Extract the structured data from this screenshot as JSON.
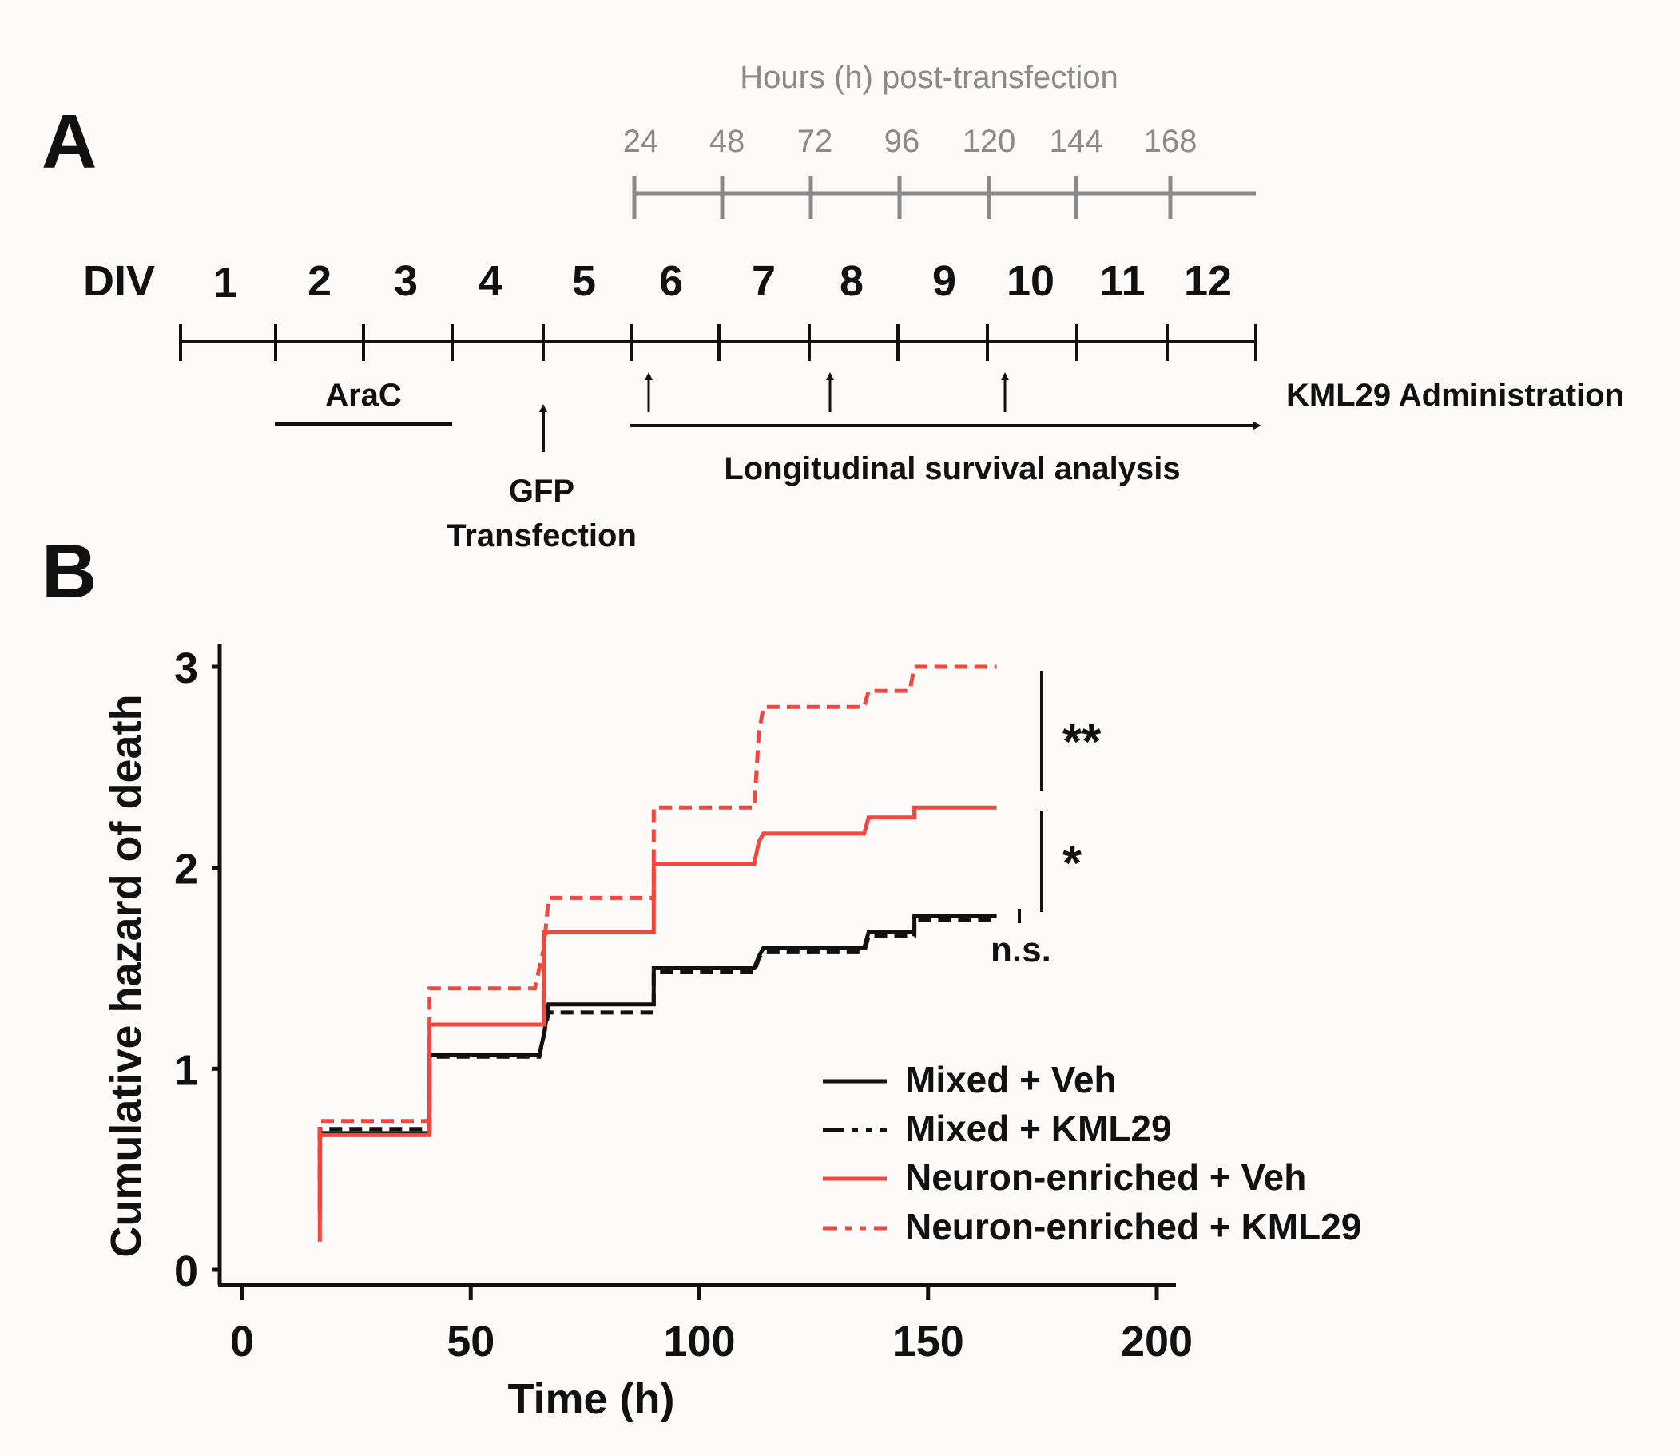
{
  "panel_a": {
    "label": "A",
    "hours_title": "Hours (h) post-transfection",
    "hours_ticks": [
      "24",
      "48",
      "72",
      "96",
      "120",
      "144",
      "168"
    ],
    "div_label": "DIV",
    "div_days": [
      "1",
      "2",
      "3",
      "4",
      "5",
      "6",
      "7",
      "8",
      "9",
      "10",
      "11",
      "12"
    ],
    "arac_label": "AraC",
    "gfp_label_line1": "GFP",
    "gfp_label_line2": "Transfection",
    "survival_label": "Longitudinal survival analysis",
    "kml29_label": "KML29 Administration",
    "colors": {
      "hours_axis": "#8a8a8a",
      "timeline": "#111111"
    }
  },
  "panel_b": {
    "label": "B",
    "significance": {
      "top": "**",
      "middle": "*",
      "bottom": "n.s."
    }
  },
  "chart_data": {
    "type": "line",
    "line_shape": "step",
    "xlabel": "Time (h)",
    "ylabel": "Cumulative hazard of death",
    "xlim": [
      0,
      200
    ],
    "ylim": [
      0,
      3
    ],
    "xticks": [
      0,
      50,
      100,
      150,
      200
    ],
    "yticks": [
      0,
      1,
      2,
      3
    ],
    "grid": false,
    "legend_position": "bottom-right",
    "series": [
      {
        "name": "Mixed + Veh",
        "color": "#111111",
        "dash": "solid",
        "points": [
          [
            17,
            0.3
          ],
          [
            17,
            0.68
          ],
          [
            41,
            0.68
          ],
          [
            41,
            1.07
          ],
          [
            65,
            1.07
          ],
          [
            66,
            1.17
          ],
          [
            67,
            1.32
          ],
          [
            90,
            1.32
          ],
          [
            90,
            1.5
          ],
          [
            112,
            1.5
          ],
          [
            113,
            1.56
          ],
          [
            114,
            1.6
          ],
          [
            136,
            1.6
          ],
          [
            137,
            1.68
          ],
          [
            147,
            1.68
          ],
          [
            147,
            1.76
          ],
          [
            165,
            1.76
          ]
        ]
      },
      {
        "name": "Mixed + KML29",
        "color": "#111111",
        "dash": "dashed",
        "points": [
          [
            17,
            0.45
          ],
          [
            17,
            0.7
          ],
          [
            41,
            0.7
          ],
          [
            41,
            1.06
          ],
          [
            65,
            1.06
          ],
          [
            66,
            1.17
          ],
          [
            67,
            1.28
          ],
          [
            90,
            1.28
          ],
          [
            90,
            1.48
          ],
          [
            112,
            1.48
          ],
          [
            113,
            1.55
          ],
          [
            114,
            1.58
          ],
          [
            136,
            1.58
          ],
          [
            137,
            1.66
          ],
          [
            147,
            1.66
          ],
          [
            147,
            1.74
          ],
          [
            165,
            1.74
          ]
        ]
      },
      {
        "name": "Neuron-enriched + Veh",
        "color": "#f2473f",
        "dash": "solid",
        "points": [
          [
            17,
            0.14
          ],
          [
            17,
            0.67
          ],
          [
            41,
            0.67
          ],
          [
            41,
            1.22
          ],
          [
            66,
            1.22
          ],
          [
            66,
            1.68
          ],
          [
            90,
            1.68
          ],
          [
            90,
            2.02
          ],
          [
            112,
            2.02
          ],
          [
            113,
            2.13
          ],
          [
            114,
            2.17
          ],
          [
            136,
            2.17
          ],
          [
            137,
            2.25
          ],
          [
            147,
            2.25
          ],
          [
            147,
            2.3
          ],
          [
            165,
            2.3
          ]
        ]
      },
      {
        "name": "Neuron-enriched + KML29",
        "color": "#f2473f",
        "dash": "dashed",
        "points": [
          [
            17,
            0.25
          ],
          [
            17,
            0.74
          ],
          [
            41,
            0.74
          ],
          [
            41,
            1.4
          ],
          [
            64,
            1.4
          ],
          [
            66,
            1.6
          ],
          [
            67,
            1.85
          ],
          [
            90,
            1.85
          ],
          [
            90,
            2.3
          ],
          [
            112,
            2.3
          ],
          [
            113,
            2.67
          ],
          [
            114,
            2.8
          ],
          [
            136,
            2.8
          ],
          [
            137,
            2.88
          ],
          [
            146,
            2.88
          ],
          [
            147,
            3.0
          ],
          [
            165,
            3.0
          ]
        ]
      }
    ]
  }
}
